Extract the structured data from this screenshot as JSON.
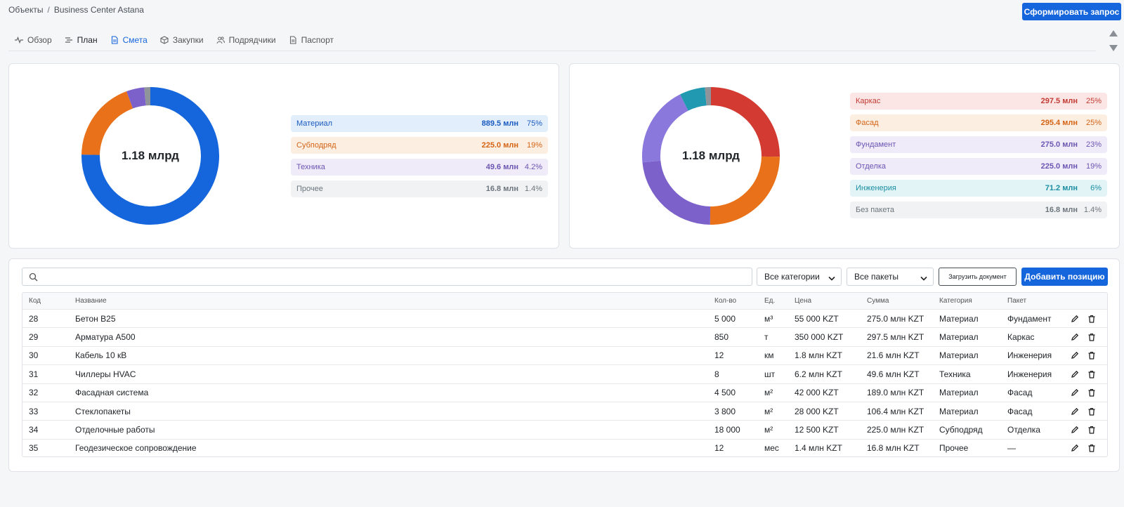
{
  "breadcrumb": {
    "root": "Объекты",
    "separator": "/",
    "current": "Business Center Astana"
  },
  "header": {
    "request_button": "Сформировать запрос"
  },
  "tabs": [
    {
      "label": "Обзор",
      "icon": "activity-icon"
    },
    {
      "label": "План",
      "icon": "list-icon"
    },
    {
      "label": "Смета",
      "icon": "document-icon",
      "active": true
    },
    {
      "label": "Закупки",
      "icon": "box-icon"
    },
    {
      "label": "Подрядчики",
      "icon": "users-icon"
    },
    {
      "label": "Паспорт",
      "icon": "document-icon"
    }
  ],
  "summary_by_category": {
    "total": "1.18 млрд",
    "items": [
      {
        "name": "Материал",
        "value": "889.5 млн",
        "pct": "75%",
        "share": 75.0,
        "color": "#1565dc",
        "bg": "#e3eefc",
        "text": "#1a5bbf"
      },
      {
        "name": "Субподряд",
        "value": "225.0 млн",
        "pct": "19%",
        "share": 19.0,
        "color": "#e8711a",
        "bg": "#fdeee2",
        "text": "#d36414"
      },
      {
        "name": "Техника",
        "value": "49.6 млн",
        "pct": "4.2%",
        "share": 4.2,
        "color": "#7b61c9",
        "bg": "#efebf8",
        "text": "#6b56b3"
      },
      {
        "name": "Прочее",
        "value": "16.8 млн",
        "pct": "1.4%",
        "share": 1.4,
        "color": "#8f949a",
        "bg": "#f1f2f3",
        "text": "#6c757d"
      }
    ]
  },
  "summary_by_package": {
    "total": "1.18 млрд",
    "items": [
      {
        "name": "Каркас",
        "value": "297.5 млн",
        "pct": "25%",
        "share": 25.2,
        "color": "#d23a32",
        "bg": "#fbe6e5",
        "text": "#c23a33"
      },
      {
        "name": "Фасад",
        "value": "295.4 млн",
        "pct": "25%",
        "share": 25.0,
        "color": "#e8711a",
        "bg": "#fdeee2",
        "text": "#d36414"
      },
      {
        "name": "Фундамент",
        "value": "275.0 млн",
        "pct": "23%",
        "share": 23.3,
        "color": "#7b61c9",
        "bg": "#efebf8",
        "text": "#6b56b3"
      },
      {
        "name": "Отделка",
        "value": "225.0 млн",
        "pct": "19%",
        "share": 19.1,
        "color": "#8a78dd",
        "bg": "#efebf8",
        "text": "#6b56b3"
      },
      {
        "name": "Инженерия",
        "value": "71.2 млн",
        "pct": "6%",
        "share": 6.0,
        "color": "#2199b0",
        "bg": "#e3f4f6",
        "text": "#1b8ea3"
      },
      {
        "name": "Без пакета",
        "value": "16.8 млн",
        "pct": "1.4%",
        "share": 1.4,
        "color": "#8f949a",
        "bg": "#f1f2f3",
        "text": "#6c757d"
      }
    ]
  },
  "toolbar": {
    "search_placeholder": "",
    "category_filter": "Все категории",
    "package_filter": "Все пакеты",
    "upload_button": "Загрузить документ",
    "add_button": "Добавить позицию"
  },
  "table": {
    "columns": [
      "Код",
      "Название",
      "Кол-во",
      "Ед.",
      "Цена",
      "Сумма",
      "Категория",
      "Пакет"
    ],
    "rows": [
      {
        "code": "28",
        "name": "Бетон B25",
        "qty": "5 000",
        "unit": "м³",
        "price": "55 000 KZT",
        "sum": "275.0 млн KZT",
        "category": "Материал",
        "package": "Фундамент"
      },
      {
        "code": "29",
        "name": "Арматура A500",
        "qty": "850",
        "unit": "т",
        "price": "350 000 KZT",
        "sum": "297.5 млн KZT",
        "category": "Материал",
        "package": "Каркас"
      },
      {
        "code": "30",
        "name": "Кабель 10 кВ",
        "qty": "12",
        "unit": "км",
        "price": "1.8 млн KZT",
        "sum": "21.6 млн KZT",
        "category": "Материал",
        "package": "Инженерия"
      },
      {
        "code": "31",
        "name": "Чиллеры HVAC",
        "qty": "8",
        "unit": "шт",
        "price": "6.2 млн KZT",
        "sum": "49.6 млн KZT",
        "category": "Техника",
        "package": "Инженерия"
      },
      {
        "code": "32",
        "name": "Фасадная система",
        "qty": "4 500",
        "unit": "м²",
        "price": "42 000 KZT",
        "sum": "189.0 млн KZT",
        "category": "Материал",
        "package": "Фасад"
      },
      {
        "code": "33",
        "name": "Стеклопакеты",
        "qty": "3 800",
        "unit": "м²",
        "price": "28 000 KZT",
        "sum": "106.4 млн KZT",
        "category": "Материал",
        "package": "Фасад"
      },
      {
        "code": "34",
        "name": "Отделочные работы",
        "qty": "18 000",
        "unit": "м²",
        "price": "12 500 KZT",
        "sum": "225.0 млн KZT",
        "category": "Субподряд",
        "package": "Отделка"
      },
      {
        "code": "35",
        "name": "Геодезическое сопровождение",
        "qty": "12",
        "unit": "мес",
        "price": "1.4 млн KZT",
        "sum": "16.8 млн KZT",
        "category": "Прочее",
        "package": "—"
      }
    ]
  }
}
